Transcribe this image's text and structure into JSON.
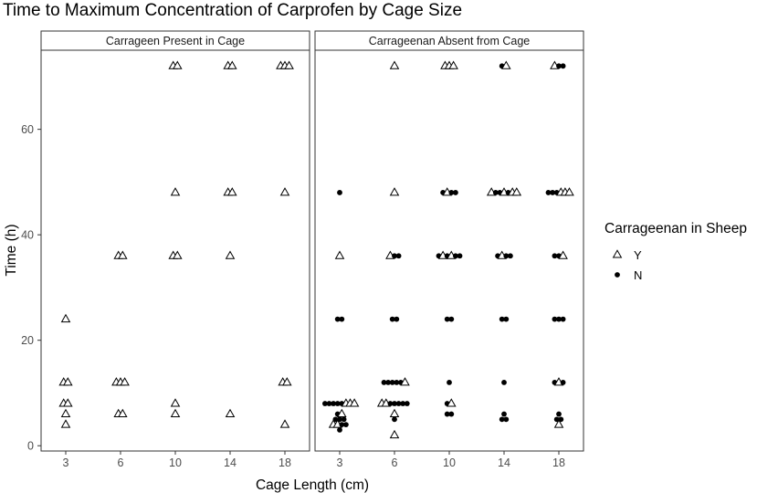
{
  "chart_data": {
    "type": "scatter",
    "title": "Time to Maximum Concentration of Carprofen by Cage Size",
    "xlabel": "Cage Length (cm)",
    "ylabel": "Time (h)",
    "x_categories": [
      "3",
      "6",
      "10",
      "14",
      "18"
    ],
    "ylim": [
      -1,
      75
    ],
    "y_ticks": [
      0,
      20,
      40,
      60
    ],
    "grid": false,
    "legend": {
      "title": "Carrageenan in Sheep",
      "position": "right",
      "entries": [
        {
          "label": "Y",
          "shape": "triangle"
        },
        {
          "label": "N",
          "shape": "dot"
        }
      ]
    },
    "panels": [
      {
        "strip": "Carrageen Present in Cage",
        "points": [
          {
            "x": "3",
            "y": 24,
            "g": "Y"
          },
          {
            "x": "3",
            "y": 12,
            "g": "Y"
          },
          {
            "x": "3",
            "y": 12,
            "g": "Y"
          },
          {
            "x": "3",
            "y": 8,
            "g": "Y"
          },
          {
            "x": "3",
            "y": 8,
            "g": "Y"
          },
          {
            "x": "3",
            "y": 6,
            "g": "Y"
          },
          {
            "x": "3",
            "y": 4,
            "g": "Y"
          },
          {
            "x": "6",
            "y": 36,
            "g": "Y"
          },
          {
            "x": "6",
            "y": 36,
            "g": "Y"
          },
          {
            "x": "6",
            "y": 12,
            "g": "Y"
          },
          {
            "x": "6",
            "y": 12,
            "g": "Y"
          },
          {
            "x": "6",
            "y": 12,
            "g": "Y"
          },
          {
            "x": "6",
            "y": 6,
            "g": "Y"
          },
          {
            "x": "6",
            "y": 6,
            "g": "Y"
          },
          {
            "x": "10",
            "y": 72,
            "g": "Y"
          },
          {
            "x": "10",
            "y": 72,
            "g": "Y"
          },
          {
            "x": "10",
            "y": 48,
            "g": "Y"
          },
          {
            "x": "10",
            "y": 36,
            "g": "Y"
          },
          {
            "x": "10",
            "y": 36,
            "g": "Y"
          },
          {
            "x": "10",
            "y": 8,
            "g": "Y"
          },
          {
            "x": "10",
            "y": 6,
            "g": "Y"
          },
          {
            "x": "14",
            "y": 72,
            "g": "Y"
          },
          {
            "x": "14",
            "y": 72,
            "g": "Y"
          },
          {
            "x": "14",
            "y": 48,
            "g": "Y"
          },
          {
            "x": "14",
            "y": 48,
            "g": "Y"
          },
          {
            "x": "14",
            "y": 36,
            "g": "Y"
          },
          {
            "x": "14",
            "y": 6,
            "g": "Y"
          },
          {
            "x": "18",
            "y": 72,
            "g": "Y"
          },
          {
            "x": "18",
            "y": 72,
            "g": "Y"
          },
          {
            "x": "18",
            "y": 72,
            "g": "Y"
          },
          {
            "x": "18",
            "y": 48,
            "g": "Y"
          },
          {
            "x": "18",
            "y": 12,
            "g": "Y"
          },
          {
            "x": "18",
            "y": 12,
            "g": "Y"
          },
          {
            "x": "18",
            "y": 4,
            "g": "Y"
          }
        ]
      },
      {
        "strip": "Carrageenan Absent from Cage",
        "points": [
          {
            "x": "3",
            "y": 48,
            "g": "N"
          },
          {
            "x": "3",
            "y": 36,
            "g": "Y"
          },
          {
            "x": "3",
            "y": 24,
            "g": "N"
          },
          {
            "x": "3",
            "y": 24,
            "g": "N"
          },
          {
            "x": "3",
            "y": 8,
            "g": "N"
          },
          {
            "x": "3",
            "y": 8,
            "g": "N"
          },
          {
            "x": "3",
            "y": 8,
            "g": "N"
          },
          {
            "x": "3",
            "y": 8,
            "g": "N"
          },
          {
            "x": "3",
            "y": 8,
            "g": "N"
          },
          {
            "x": "3",
            "y": 8,
            "g": "Y"
          },
          {
            "x": "3",
            "y": 8,
            "g": "Y"
          },
          {
            "x": "3",
            "y": 8,
            "g": "Y"
          },
          {
            "x": "3",
            "y": 6,
            "g": "N"
          },
          {
            "x": "3",
            "y": 6,
            "g": "Y"
          },
          {
            "x": "3",
            "y": 5,
            "g": "N"
          },
          {
            "x": "3",
            "y": 5,
            "g": "N"
          },
          {
            "x": "3",
            "y": 5,
            "g": "N"
          },
          {
            "x": "3",
            "y": 4,
            "g": "Y"
          },
          {
            "x": "3",
            "y": 4,
            "g": "Y"
          },
          {
            "x": "3",
            "y": 4,
            "g": "N"
          },
          {
            "x": "3",
            "y": 4,
            "g": "N"
          },
          {
            "x": "3",
            "y": 3,
            "g": "N"
          },
          {
            "x": "6",
            "y": 72,
            "g": "Y"
          },
          {
            "x": "6",
            "y": 48,
            "g": "Y"
          },
          {
            "x": "6",
            "y": 36,
            "g": "Y"
          },
          {
            "x": "6",
            "y": 36,
            "g": "N"
          },
          {
            "x": "6",
            "y": 36,
            "g": "N"
          },
          {
            "x": "6",
            "y": 24,
            "g": "N"
          },
          {
            "x": "6",
            "y": 24,
            "g": "N"
          },
          {
            "x": "6",
            "y": 12,
            "g": "N"
          },
          {
            "x": "6",
            "y": 12,
            "g": "N"
          },
          {
            "x": "6",
            "y": 12,
            "g": "N"
          },
          {
            "x": "6",
            "y": 12,
            "g": "N"
          },
          {
            "x": "6",
            "y": 12,
            "g": "N"
          },
          {
            "x": "6",
            "y": 12,
            "g": "Y"
          },
          {
            "x": "6",
            "y": 8,
            "g": "Y"
          },
          {
            "x": "6",
            "y": 8,
            "g": "Y"
          },
          {
            "x": "6",
            "y": 8,
            "g": "N"
          },
          {
            "x": "6",
            "y": 8,
            "g": "N"
          },
          {
            "x": "6",
            "y": 8,
            "g": "N"
          },
          {
            "x": "6",
            "y": 8,
            "g": "N"
          },
          {
            "x": "6",
            "y": 8,
            "g": "N"
          },
          {
            "x": "6",
            "y": 6,
            "g": "Y"
          },
          {
            "x": "6",
            "y": 5,
            "g": "N"
          },
          {
            "x": "6",
            "y": 2,
            "g": "Y"
          },
          {
            "x": "10",
            "y": 72,
            "g": "Y"
          },
          {
            "x": "10",
            "y": 72,
            "g": "Y"
          },
          {
            "x": "10",
            "y": 72,
            "g": "Y"
          },
          {
            "x": "10",
            "y": 48,
            "g": "N"
          },
          {
            "x": "10",
            "y": 48,
            "g": "Y"
          },
          {
            "x": "10",
            "y": 48,
            "g": "N"
          },
          {
            "x": "10",
            "y": 48,
            "g": "N"
          },
          {
            "x": "10",
            "y": 36,
            "g": "N"
          },
          {
            "x": "10",
            "y": 36,
            "g": "Y"
          },
          {
            "x": "10",
            "y": 36,
            "g": "N"
          },
          {
            "x": "10",
            "y": 36,
            "g": "Y"
          },
          {
            "x": "10",
            "y": 36,
            "g": "N"
          },
          {
            "x": "10",
            "y": 36,
            "g": "N"
          },
          {
            "x": "10",
            "y": 24,
            "g": "N"
          },
          {
            "x": "10",
            "y": 24,
            "g": "N"
          },
          {
            "x": "10",
            "y": 12,
            "g": "N"
          },
          {
            "x": "10",
            "y": 8,
            "g": "N"
          },
          {
            "x": "10",
            "y": 8,
            "g": "Y"
          },
          {
            "x": "10",
            "y": 6,
            "g": "N"
          },
          {
            "x": "10",
            "y": 6,
            "g": "N"
          },
          {
            "x": "14",
            "y": 72,
            "g": "N"
          },
          {
            "x": "14",
            "y": 72,
            "g": "Y"
          },
          {
            "x": "14",
            "y": 48,
            "g": "Y"
          },
          {
            "x": "14",
            "y": 48,
            "g": "N"
          },
          {
            "x": "14",
            "y": 48,
            "g": "N"
          },
          {
            "x": "14",
            "y": 48,
            "g": "Y"
          },
          {
            "x": "14",
            "y": 48,
            "g": "N"
          },
          {
            "x": "14",
            "y": 48,
            "g": "Y"
          },
          {
            "x": "14",
            "y": 48,
            "g": "Y"
          },
          {
            "x": "14",
            "y": 36,
            "g": "N"
          },
          {
            "x": "14",
            "y": 36,
            "g": "Y"
          },
          {
            "x": "14",
            "y": 36,
            "g": "N"
          },
          {
            "x": "14",
            "y": 36,
            "g": "N"
          },
          {
            "x": "14",
            "y": 24,
            "g": "N"
          },
          {
            "x": "14",
            "y": 24,
            "g": "N"
          },
          {
            "x": "14",
            "y": 12,
            "g": "N"
          },
          {
            "x": "14",
            "y": 6,
            "g": "N"
          },
          {
            "x": "14",
            "y": 5,
            "g": "N"
          },
          {
            "x": "14",
            "y": 5,
            "g": "N"
          },
          {
            "x": "18",
            "y": 72,
            "g": "Y"
          },
          {
            "x": "18",
            "y": 72,
            "g": "N"
          },
          {
            "x": "18",
            "y": 72,
            "g": "N"
          },
          {
            "x": "18",
            "y": 48,
            "g": "N"
          },
          {
            "x": "18",
            "y": 48,
            "g": "N"
          },
          {
            "x": "18",
            "y": 48,
            "g": "N"
          },
          {
            "x": "18",
            "y": 48,
            "g": "Y"
          },
          {
            "x": "18",
            "y": 48,
            "g": "Y"
          },
          {
            "x": "18",
            "y": 48,
            "g": "Y"
          },
          {
            "x": "18",
            "y": 36,
            "g": "N"
          },
          {
            "x": "18",
            "y": 36,
            "g": "N"
          },
          {
            "x": "18",
            "y": 36,
            "g": "Y"
          },
          {
            "x": "18",
            "y": 24,
            "g": "N"
          },
          {
            "x": "18",
            "y": 24,
            "g": "N"
          },
          {
            "x": "18",
            "y": 24,
            "g": "N"
          },
          {
            "x": "18",
            "y": 12,
            "g": "N"
          },
          {
            "x": "18",
            "y": 12,
            "g": "Y"
          },
          {
            "x": "18",
            "y": 12,
            "g": "N"
          },
          {
            "x": "18",
            "y": 6,
            "g": "N"
          },
          {
            "x": "18",
            "y": 5,
            "g": "N"
          },
          {
            "x": "18",
            "y": 5,
            "g": "N"
          },
          {
            "x": "18",
            "y": 4,
            "g": "Y"
          }
        ]
      }
    ]
  }
}
